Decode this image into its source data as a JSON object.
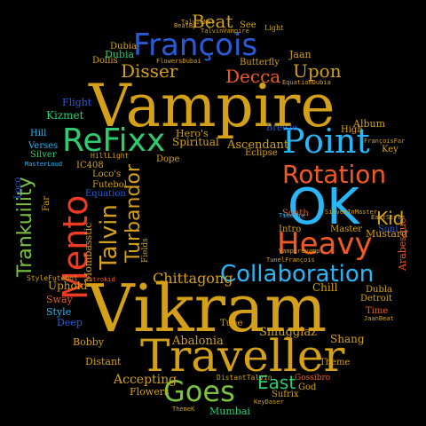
{
  "words": [
    {
      "text": "Vikram",
      "color": "#d4a017"
    },
    {
      "text": "Vampire",
      "color": "#d4a017"
    },
    {
      "text": "OK",
      "color": "#29b6f6"
    },
    {
      "text": "Traveller",
      "color": "#d4a017"
    },
    {
      "text": "Point",
      "color": "#29b6f6"
    },
    {
      "text": "Heavy",
      "color": "#ef5a24"
    },
    {
      "text": "Mento",
      "color": "#ef3b24"
    },
    {
      "text": "ReFixx",
      "color": "#2ecc71"
    },
    {
      "text": "François",
      "color": "#2a5bd7"
    },
    {
      "text": "Rotation",
      "color": "#ef5a24"
    },
    {
      "text": "Collaboration",
      "color": "#29b6f6"
    },
    {
      "text": "Goes",
      "color": "#7cc242"
    },
    {
      "text": "Talvin",
      "color": "#d4a017"
    },
    {
      "text": "Trankuility",
      "color": "#7cc242"
    },
    {
      "text": "Turbandor",
      "color": "#d4a017"
    },
    {
      "text": "Beat",
      "color": "#d4a017"
    },
    {
      "text": "Decca",
      "color": "#ef5a24"
    },
    {
      "text": "Disser",
      "color": "#d4a017"
    },
    {
      "text": "Upon",
      "color": "#d4a017"
    },
    {
      "text": "Kid",
      "color": "#d4a017"
    },
    {
      "text": "East",
      "color": "#2ecc71"
    },
    {
      "text": "Chittagong",
      "color": "#d4a017"
    },
    {
      "text": "Accepting",
      "color": "#d4a017"
    },
    {
      "text": "Smugglaz",
      "color": "#d4a017"
    },
    {
      "text": "Ascendant",
      "color": "#d4a017"
    },
    {
      "text": "Mombasstic",
      "color": "#d4a017"
    },
    {
      "text": "Abalonia",
      "color": "#d4a017"
    },
    {
      "text": "Spiritual",
      "color": "#d4a017"
    },
    {
      "text": "Kizmet",
      "color": "#2ecc71"
    },
    {
      "text": "Dubia",
      "color": "#2ecc71"
    },
    {
      "text": "Uphold",
      "color": "#d4a017"
    },
    {
      "text": "Chill",
      "color": "#d4a017"
    },
    {
      "text": "Shang",
      "color": "#d4a017"
    },
    {
      "text": "Mumbai",
      "color": "#2ecc71"
    },
    {
      "text": "Mustard",
      "color": "#d4a017"
    },
    {
      "text": "Arabesque",
      "color": "#ef5a24"
    },
    {
      "text": "Album",
      "color": "#d4a017"
    },
    {
      "text": "Flowers",
      "color": "#d4a017"
    },
    {
      "text": "Hero's",
      "color": "#d4a017"
    },
    {
      "text": "Flight",
      "color": "#2a5bd7"
    },
    {
      "text": "Jaan",
      "color": "#d4a017"
    },
    {
      "text": "See",
      "color": "#d4a017"
    },
    {
      "text": "Dubia",
      "color": "#d4a017"
    },
    {
      "text": "Dollis",
      "color": "#d4a017"
    },
    {
      "text": "Butterfly",
      "color": "#d4a017"
    },
    {
      "text": "Sway",
      "color": "#ef5a24"
    },
    {
      "text": "Style",
      "color": "#29b6f6"
    },
    {
      "text": "Deep",
      "color": "#2a5bd7"
    },
    {
      "text": "Bobby",
      "color": "#d4a017"
    },
    {
      "text": "Distant",
      "color": "#d4a017"
    },
    {
      "text": "Tune",
      "color": "#d4a017"
    },
    {
      "text": "Time",
      "color": "#ef5a24"
    },
    {
      "text": "Detroit",
      "color": "#d4a017"
    },
    {
      "text": "Dubla",
      "color": "#d4a017"
    },
    {
      "text": "Intro",
      "color": "#d4a017"
    },
    {
      "text": "Master",
      "color": "#d4a017"
    },
    {
      "text": "Soni",
      "color": "#2a5bd7"
    },
    {
      "text": "South",
      "color": "#ef5a24"
    },
    {
      "text": "Eclipse",
      "color": "#d4a017"
    },
    {
      "text": "Dope",
      "color": "#d4a017"
    },
    {
      "text": "Futebol",
      "color": "#d4a017"
    },
    {
      "text": "Equation",
      "color": "#2a5bd7"
    },
    {
      "text": "Loco's",
      "color": "#d4a017"
    },
    {
      "text": "IC408",
      "color": "#d4a017"
    },
    {
      "text": "Verses",
      "color": "#29b6f6"
    },
    {
      "text": "Silver",
      "color": "#2ecc71"
    },
    {
      "text": "Hill",
      "color": "#29b6f6"
    },
    {
      "text": "Loco",
      "color": "#2a5bd7"
    },
    {
      "text": "Far",
      "color": "#d4a017"
    },
    {
      "text": "High",
      "color": "#d4a017"
    },
    {
      "text": "Breeze",
      "color": "#2a5bd7"
    },
    {
      "text": "Key",
      "color": "#d4a017"
    },
    {
      "text": "Sufrix",
      "color": "#d4a017"
    },
    {
      "text": "God",
      "color": "#d4a017"
    },
    {
      "text": "Theme",
      "color": "#d4a017"
    },
    {
      "text": "Gossibro",
      "color": "#ef5a24"
    },
    {
      "text": "Fields",
      "color": "#d4a017"
    },
    {
      "text": "Light",
      "color": "#d4a017"
    },
    {
      "text": "StyleFutebol",
      "color": "#d4a017"
    },
    {
      "text": "DistantTalvin",
      "color": "#d4a017"
    },
    {
      "text": "HillLight",
      "color": "#d4a017"
    },
    {
      "text": "SilverInMaster",
      "color": "#d4a017"
    },
    {
      "text": "JaanBeat",
      "color": "#d4a017"
    },
    {
      "text": "TimeMix",
      "color": "#29b6f6"
    },
    {
      "text": "EastStyle",
      "color": "#d4a017"
    },
    {
      "text": "TunelFrançois",
      "color": "#d4a017"
    },
    {
      "text": "FrançoisFar",
      "color": "#d4a017"
    },
    {
      "text": "FlowersDubai",
      "color": "#d4a017"
    },
    {
      "text": "EquationDubia",
      "color": "#d4a017"
    },
    {
      "text": "TalvinNet",
      "color": "#d4a017"
    },
    {
      "text": "TalvinVampire",
      "color": "#d4a017"
    },
    {
      "text": "MasterLoud",
      "color": "#29b6f6"
    },
    {
      "text": "ThemeK",
      "color": "#d4a017"
    },
    {
      "text": "KeyDaser",
      "color": "#d4a017"
    },
    {
      "text": "Introkid",
      "color": "#ef5a24"
    },
    {
      "text": "BeatBy",
      "color": "#d4a017"
    },
    {
      "text": "Vampirevamp",
      "color": "#d4a017"
    }
  ]
}
